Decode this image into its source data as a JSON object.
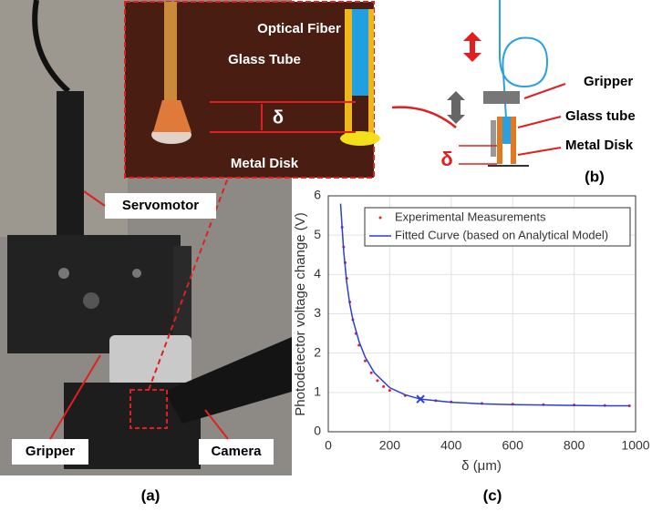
{
  "panel_a": {
    "optical_fiber": "Optical Fiber",
    "glass_tube": "Glass Tube",
    "delta": "δ",
    "metal_disk": "Metal Disk",
    "servomotor": "Servomotor",
    "gripper": "Gripper",
    "camera": "Camera",
    "caption": "(a)"
  },
  "panel_b": {
    "gripper": "Gripper",
    "glass_tube": "Glass tube",
    "metal_disk": "Metal Disk",
    "delta": "δ",
    "caption": "(b)"
  },
  "chart_data": {
    "type": "line",
    "caption": "(c)",
    "x_label": "δ (μm)",
    "y_label": "Photodetector voltage change (V)",
    "xlim": [
      0,
      1000
    ],
    "xticks": [
      0,
      200,
      400,
      600,
      800,
      1000
    ],
    "ylim": [
      0,
      6
    ],
    "yticks": [
      0,
      1,
      2,
      3,
      4,
      5,
      6
    ],
    "grid": true,
    "legend": "top-right",
    "series": [
      {
        "name": "Experimental Measurements",
        "color": "#e8202a",
        "style": "dots",
        "x": [
          45,
          50,
          55,
          60,
          70,
          80,
          90,
          100,
          120,
          140,
          160,
          180,
          200,
          250,
          300,
          350,
          400,
          500,
          600,
          700,
          800,
          900,
          980
        ],
        "values": [
          5.2,
          4.7,
          4.3,
          3.9,
          3.3,
          2.85,
          2.5,
          2.2,
          1.8,
          1.5,
          1.3,
          1.15,
          1.05,
          0.92,
          0.84,
          0.79,
          0.76,
          0.72,
          0.7,
          0.69,
          0.68,
          0.67,
          0.66
        ]
      },
      {
        "name": "Fitted Curve (based on Analytical Model)",
        "color": "#2b3fd6",
        "style": "line",
        "x": [
          40,
          50,
          60,
          70,
          80,
          100,
          120,
          150,
          200,
          250,
          300,
          400,
          500,
          600,
          700,
          800,
          900,
          980
        ],
        "values": [
          5.8,
          4.6,
          3.8,
          3.25,
          2.85,
          2.3,
          1.9,
          1.5,
          1.12,
          0.94,
          0.83,
          0.75,
          0.71,
          0.69,
          0.68,
          0.67,
          0.66,
          0.66
        ]
      }
    ],
    "marker_point": {
      "x": 300,
      "y": 0.83,
      "color": "#2b3fd6"
    }
  }
}
